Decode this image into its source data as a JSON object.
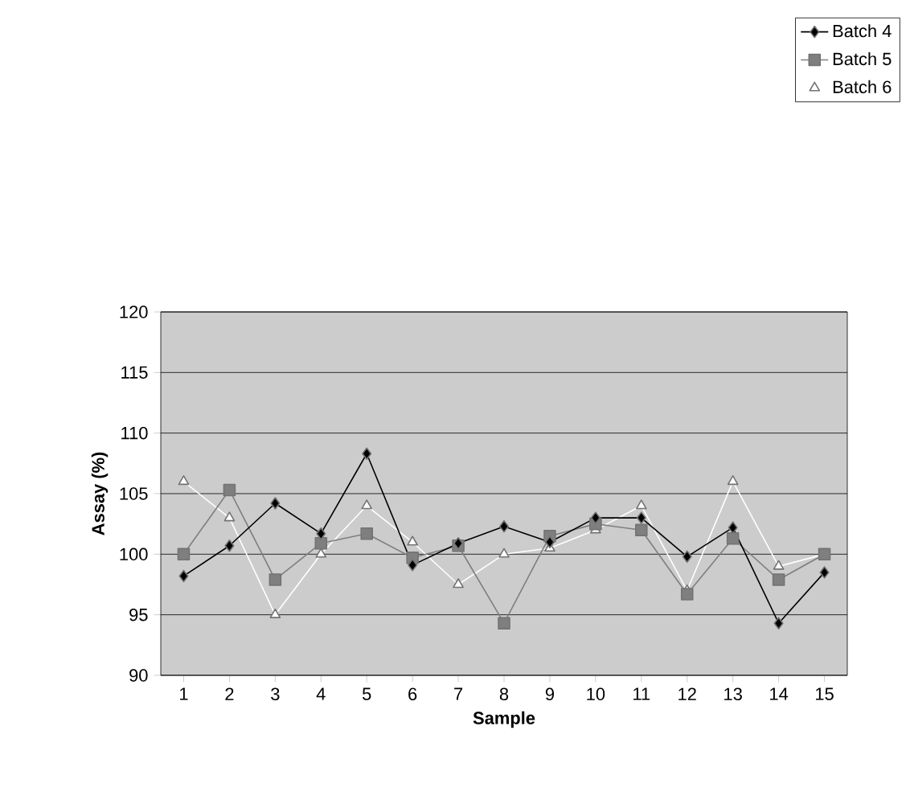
{
  "chart_data": {
    "type": "line",
    "xlabel": "Sample",
    "ylabel": "Assay (%)",
    "categories": [
      "1",
      "2",
      "3",
      "4",
      "5",
      "6",
      "7",
      "8",
      "9",
      "10",
      "11",
      "12",
      "13",
      "14",
      "15"
    ],
    "series": [
      {
        "name": "Batch 4",
        "color": "#000000",
        "marker": "diamond",
        "values": [
          98.2,
          100.7,
          104.2,
          101.7,
          108.3,
          99.1,
          100.9,
          102.3,
          101.0,
          103.0,
          103.0,
          99.8,
          102.2,
          94.3,
          98.5
        ]
      },
      {
        "name": "Batch 5",
        "color": "#7f7f7f",
        "marker": "square",
        "values": [
          100.0,
          105.3,
          97.9,
          100.9,
          101.7,
          99.7,
          100.7,
          94.3,
          101.5,
          102.5,
          102.0,
          96.7,
          101.3,
          97.9,
          100.0
        ]
      },
      {
        "name": "Batch 6",
        "color": "#ffffff",
        "marker": "triangle",
        "values": [
          106.0,
          103.0,
          95.0,
          100.0,
          104.0,
          101.0,
          97.5,
          100.0,
          100.5,
          102.0,
          104.0,
          97.0,
          106.0,
          99.0,
          100.0
        ]
      }
    ],
    "ylim": [
      90,
      120
    ],
    "yticks": [
      90,
      95,
      100,
      105,
      110,
      115,
      120
    ],
    "grid": "y",
    "legend": "top right",
    "line_style": "solid"
  }
}
